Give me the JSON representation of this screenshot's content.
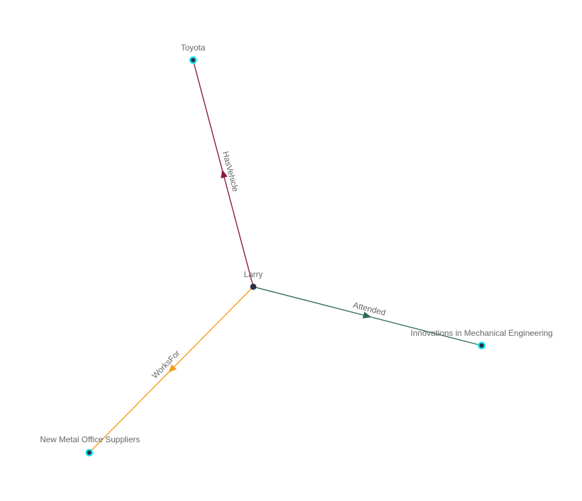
{
  "nodes": [
    {
      "id": "larry",
      "label": "Larry",
      "halo": false
    },
    {
      "id": "toyota",
      "label": "Toyota",
      "halo": true
    },
    {
      "id": "innov",
      "label": "Innovations in Mechanical Engineering",
      "halo": true
    },
    {
      "id": "newmetal",
      "label": "New Metal Office Suppliers",
      "halo": true
    }
  ],
  "edges": [
    {
      "source": "larry",
      "target": "toyota",
      "label": "HasVehicle",
      "color": "#8b1a3f"
    },
    {
      "source": "larry",
      "target": "innov",
      "label": "Attended",
      "color": "#2e6b55"
    },
    {
      "source": "larry",
      "target": "newmetal",
      "label": "WorksFor",
      "color": "#f29d1a"
    }
  ],
  "colors": {
    "node_fill": "#2b3148",
    "halo": "#19e6f0",
    "label": "#666666"
  }
}
